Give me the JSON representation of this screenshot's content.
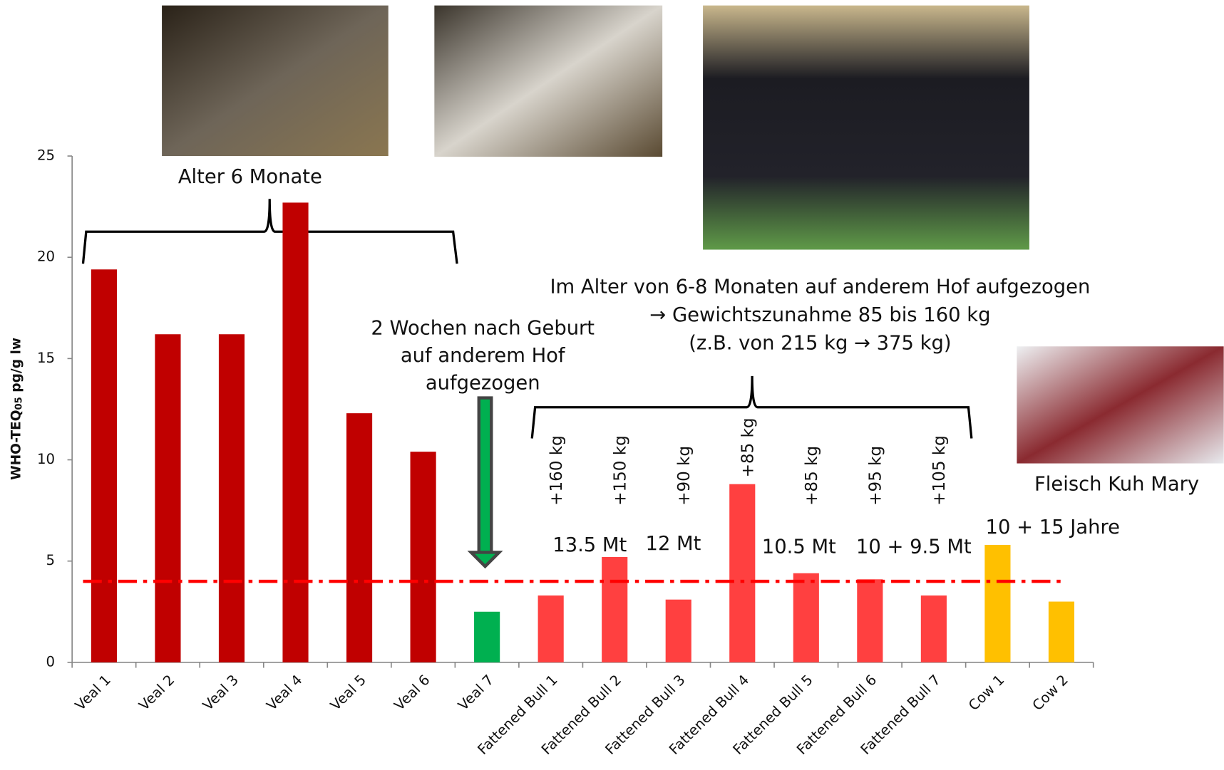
{
  "chart_data": {
    "type": "bar",
    "y_label": [
      "WHO-TEQ",
      "05",
      " pg/g lw"
    ],
    "categories": [
      "Veal 1",
      "Veal 2",
      "Veal 3",
      "Veal 4",
      "Veal 5",
      "Veal 6",
      "Veal 7",
      "Fattened Bull 1",
      "Fattened Bull 2",
      "Fattened Bull 3",
      "Fattened Bull 4",
      "Fattened Bull 5",
      "Fattened Bull 6",
      "Fattened Bull 7",
      "Cow 1",
      "Cow 2"
    ],
    "values": [
      19.4,
      16.2,
      16.2,
      22.7,
      12.3,
      10.4,
      2.5,
      3.3,
      5.2,
      3.1,
      8.8,
      4.4,
      4.1,
      3.3,
      5.8,
      3.0
    ],
    "colors": [
      "#c00000",
      "#c00000",
      "#c00000",
      "#c00000",
      "#c00000",
      "#c00000",
      "#00b050",
      "#ff4040",
      "#ff4040",
      "#ff4040",
      "#ff4040",
      "#ff4040",
      "#ff4040",
      "#ff4040",
      "#ffc000",
      "#ffc000"
    ],
    "ylim": [
      0,
      25
    ],
    "yticks": [
      0,
      5,
      10,
      15,
      20,
      25
    ],
    "reference_line": {
      "value": 4.0,
      "color": "#ff0000"
    },
    "annotations": {
      "veal_age": "Alter 6 Monate",
      "veal7_note": [
        "2 Wochen nach Geburt",
        "auf anderem Hof",
        "aufgezogen"
      ],
      "bull_note": [
        "Im Alter von 6-8 Monaten auf anderem Hof aufgezogen",
        "→ Gewichtszunahme 85 bis 160 kg",
        "(z.B. von 215 kg → 375 kg)"
      ],
      "kg_labels": [
        "+160 kg",
        "+150 kg",
        "+90 kg",
        "+85 kg",
        "+85 kg",
        "+95 kg",
        "+105 kg"
      ],
      "ages": [
        "13.5 Mt",
        "12 Mt",
        "10.5 Mt",
        "10 + 9.5 Mt",
        "10 + 15 Jahre"
      ],
      "meat_caption": "Fleisch Kuh Mary"
    }
  }
}
